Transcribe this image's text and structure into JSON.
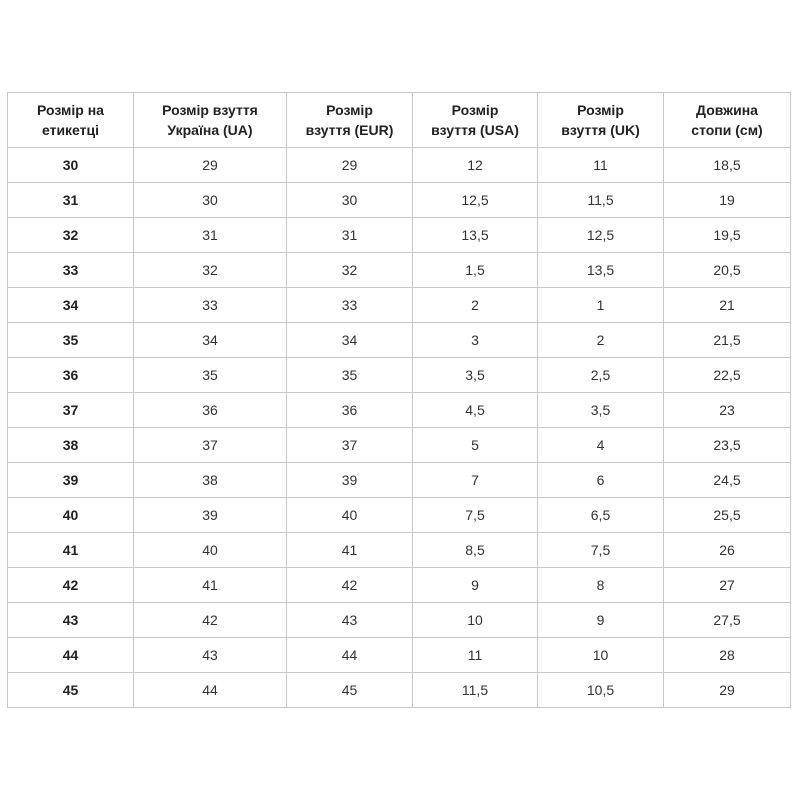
{
  "table": {
    "header": [
      [
        "Розмір на",
        "етикетці"
      ],
      [
        "Розмір взуття",
        "Україна (UA)"
      ],
      [
        "Розмір",
        "взуття (EUR)"
      ],
      [
        "Розмір",
        "взуття (USA)"
      ],
      [
        "Розмір",
        "взуття (UK)"
      ],
      [
        "Довжина",
        "стопи (см)"
      ]
    ],
    "rows": [
      [
        "30",
        "29",
        "29",
        "12",
        "11",
        "18,5"
      ],
      [
        "31",
        "30",
        "30",
        "12,5",
        "11,5",
        "19"
      ],
      [
        "32",
        "31",
        "31",
        "13,5",
        "12,5",
        "19,5"
      ],
      [
        "33",
        "32",
        "32",
        "1,5",
        "13,5",
        "20,5"
      ],
      [
        "34",
        "33",
        "33",
        "2",
        "1",
        "21"
      ],
      [
        "35",
        "34",
        "34",
        "3",
        "2",
        "21,5"
      ],
      [
        "36",
        "35",
        "35",
        "3,5",
        "2,5",
        "22,5"
      ],
      [
        "37",
        "36",
        "36",
        "4,5",
        "3,5",
        "23"
      ],
      [
        "38",
        "37",
        "37",
        "5",
        "4",
        "23,5"
      ],
      [
        "39",
        "38",
        "39",
        "7",
        "6",
        "24,5"
      ],
      [
        "40",
        "39",
        "40",
        "7,5",
        "6,5",
        "25,5"
      ],
      [
        "41",
        "40",
        "41",
        "8,5",
        "7,5",
        "26"
      ],
      [
        "42",
        "41",
        "42",
        "9",
        "8",
        "27"
      ],
      [
        "43",
        "42",
        "43",
        "10",
        "9",
        "27,5"
      ],
      [
        "44",
        "43",
        "44",
        "11",
        "10",
        "28"
      ],
      [
        "45",
        "44",
        "45",
        "11,5",
        "10,5",
        "29"
      ]
    ]
  }
}
